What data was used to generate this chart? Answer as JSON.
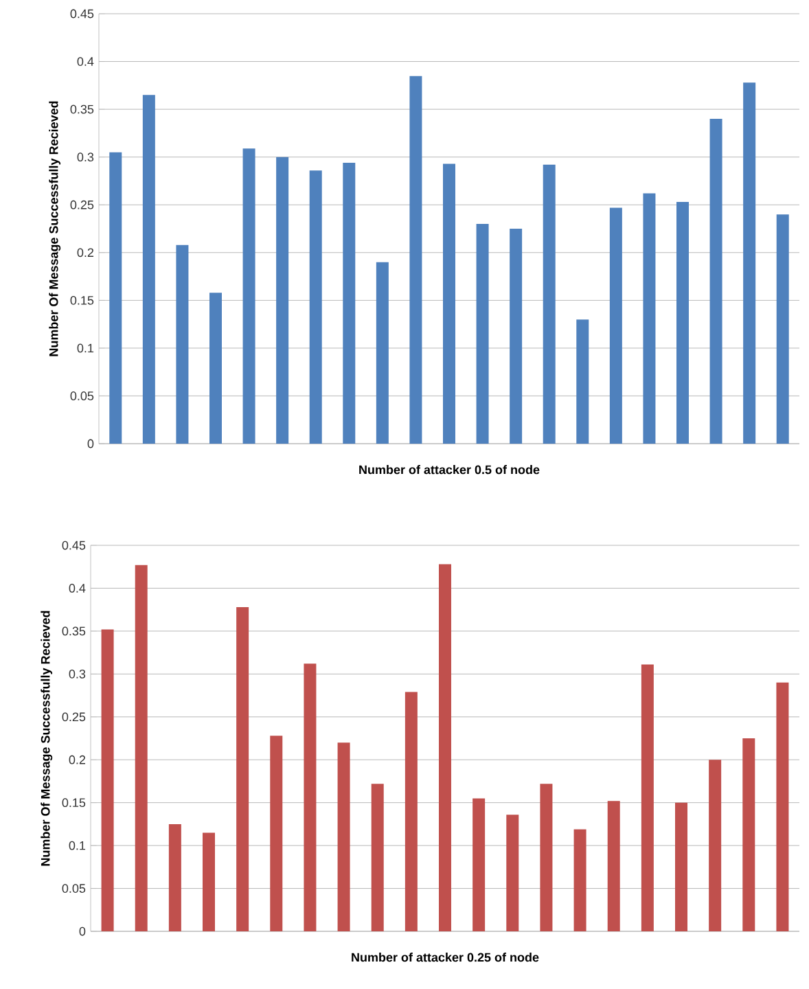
{
  "chart_data": [
    {
      "type": "bar",
      "xlabel": "Number of attacker 0.5 of node",
      "ylabel": "Number Of Message Successfully Recieved",
      "categories": [
        null,
        null,
        null,
        null,
        null,
        null,
        null,
        null,
        null,
        null,
        null,
        null,
        null,
        null,
        null,
        null,
        null,
        null,
        null,
        null,
        null
      ],
      "values": [
        0.305,
        0.365,
        0.208,
        0.158,
        0.309,
        0.3,
        0.286,
        0.294,
        0.19,
        0.385,
        0.293,
        0.23,
        0.225,
        0.292,
        0.13,
        0.247,
        0.262,
        0.253,
        0.34,
        0.378,
        0.24
      ],
      "color": "#4f81bd",
      "ylim": [
        0,
        0.45
      ],
      "yticks": [
        0,
        0.05,
        0.1,
        0.15,
        0.2,
        0.25,
        0.3,
        0.35,
        0.4,
        0.45
      ],
      "grid": "y"
    },
    {
      "type": "bar",
      "xlabel": "Number of attacker 0.25 of node",
      "ylabel": "Number Of Message Successfully Recieved",
      "categories": [
        null,
        null,
        null,
        null,
        null,
        null,
        null,
        null,
        null,
        null,
        null,
        null,
        null,
        null,
        null,
        null,
        null,
        null,
        null,
        null,
        null
      ],
      "values": [
        0.352,
        0.427,
        0.125,
        0.115,
        0.378,
        0.228,
        0.312,
        0.22,
        0.172,
        0.279,
        0.428,
        0.155,
        0.136,
        0.172,
        0.119,
        0.152,
        0.311,
        0.15,
        0.2,
        0.225,
        0.29
      ],
      "color": "#c0504d",
      "ylim": [
        0,
        0.45
      ],
      "yticks": [
        0,
        0.05,
        0.1,
        0.15,
        0.2,
        0.25,
        0.3,
        0.35,
        0.4,
        0.45
      ],
      "grid": "y"
    }
  ]
}
